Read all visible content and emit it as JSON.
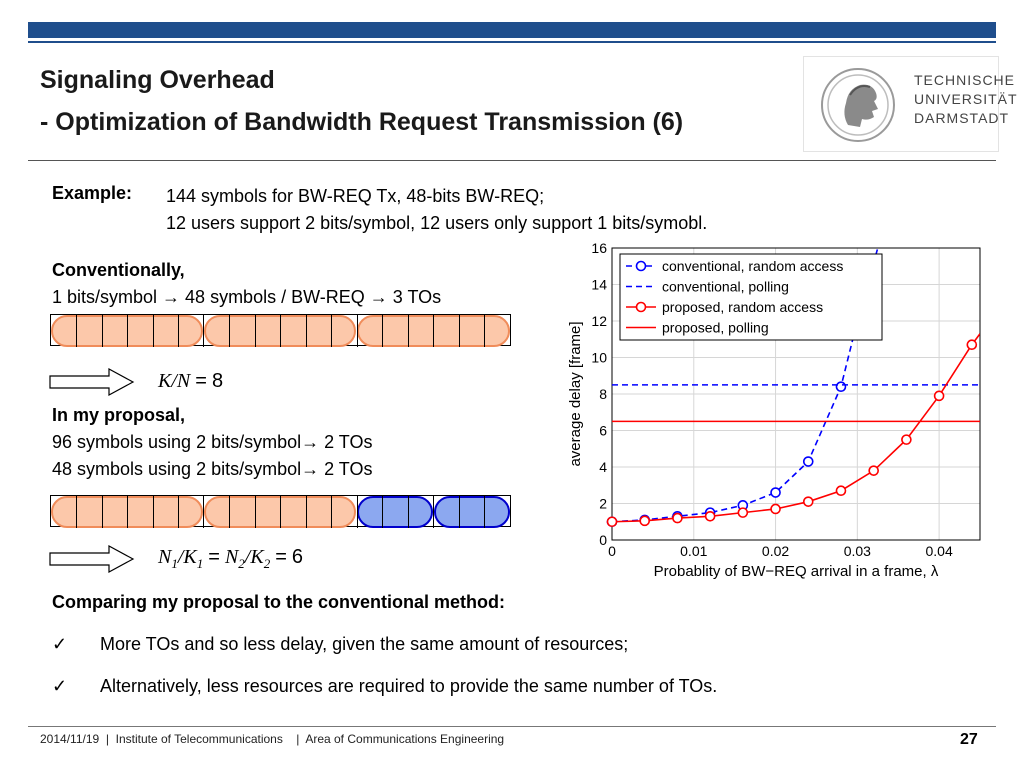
{
  "header": {
    "title_line1": "Signaling Overhead",
    "title_line2": "- Optimization of Bandwidth Request Transmission (6)",
    "logo": {
      "line1": "TECHNISCHE",
      "line2": "UNIVERSITÄT",
      "line3": "DARMSTADT"
    }
  },
  "example": {
    "label": "Example:",
    "line1": "144 symbols for BW-REQ Tx, 48-bits BW-REQ;",
    "line2": "12 users support 2 bits/symbol, 12 users only support 1 bits/symobl."
  },
  "conventional": {
    "heading": "Conventionally,",
    "line": "1 bits/symbol → 48 symbols / BW-REQ → 3 TOs",
    "formula_lhs": "K/N",
    "formula_eq": "=",
    "formula_value": "8"
  },
  "proposal": {
    "heading": "In my proposal,",
    "line1": "96 symbols using 2 bits/symbol→ 2 TOs",
    "line2": "48 symbols using 2 bits/symbol→ 2 TOs",
    "formula_value": "6"
  },
  "comparison": {
    "heading": "Comparing my proposal to the conventional method:",
    "bullet1": "More TOs and so less delay, given the same amount of resources;",
    "bullet2": "Alternatively, less resources are required to provide the same number of TOs.",
    "check_glyph": "✓"
  },
  "footer": {
    "date": "2014/11/19",
    "sep": "|",
    "institute": "Institute of Telecommunications",
    "area": "Area of Communications Engineering",
    "page": "27"
  },
  "colors": {
    "accent": "#1f4e8c",
    "orange_fill": "#fcc8aa",
    "orange_edge": "#f08c5a",
    "blue_fill": "#8ca8f0",
    "blue_edge": "#0000cc"
  },
  "chart_data": {
    "type": "line",
    "xlabel": "Probablity of BW−REQ arrival in a frame, λ",
    "ylabel": "average delay [frame]",
    "xlim": [
      0,
      0.045
    ],
    "ylim": [
      0,
      16
    ],
    "xticks": [
      "0",
      "0.01",
      "0.02",
      "0.03",
      "0.04"
    ],
    "xtick_values": [
      0,
      0.01,
      0.02,
      0.03,
      0.04
    ],
    "yticks": [
      "0",
      "2",
      "4",
      "6",
      "8",
      "10",
      "12",
      "14",
      "16"
    ],
    "ytick_values": [
      0,
      2,
      4,
      6,
      8,
      10,
      12,
      14,
      16
    ],
    "grid": true,
    "legend": "top-right",
    "series": [
      {
        "name": "conventional, random access",
        "color": "#0000ff",
        "style": "dashed",
        "marker": "circle",
        "x": [
          0,
          0.004,
          0.008,
          0.012,
          0.016,
          0.02,
          0.024,
          0.028
        ],
        "y": [
          1.0,
          1.1,
          1.3,
          1.5,
          1.9,
          2.6,
          4.3,
          8.4
        ],
        "curve_x": [
          0,
          0.004,
          0.008,
          0.012,
          0.016,
          0.02,
          0.024,
          0.028,
          0.03,
          0.0325
        ],
        "curve_y": [
          1.0,
          1.1,
          1.3,
          1.5,
          1.9,
          2.6,
          4.3,
          8.4,
          12.0,
          16.0
        ]
      },
      {
        "name": "conventional, polling",
        "color": "#0000ff",
        "style": "dashed",
        "marker": "none",
        "x": [
          0,
          0.045
        ],
        "y": [
          8.5,
          8.5
        ]
      },
      {
        "name": "proposed, random access",
        "color": "#ff0000",
        "style": "solid",
        "marker": "circle",
        "x": [
          0,
          0.004,
          0.008,
          0.012,
          0.016,
          0.02,
          0.024,
          0.028,
          0.032,
          0.036,
          0.04,
          0.044
        ],
        "y": [
          1.0,
          1.05,
          1.2,
          1.3,
          1.5,
          1.7,
          2.1,
          2.7,
          3.8,
          5.5,
          7.9,
          10.7
        ],
        "curve_x": [
          0,
          0.004,
          0.008,
          0.012,
          0.016,
          0.02,
          0.024,
          0.028,
          0.032,
          0.036,
          0.04,
          0.044,
          0.045
        ],
        "curve_y": [
          1.0,
          1.05,
          1.2,
          1.3,
          1.5,
          1.7,
          2.1,
          2.7,
          3.8,
          5.5,
          7.9,
          10.7,
          11.3
        ]
      },
      {
        "name": "proposed, polling",
        "color": "#ff0000",
        "style": "solid",
        "marker": "none",
        "x": [
          0,
          0.045
        ],
        "y": [
          6.5,
          6.5
        ]
      }
    ]
  }
}
